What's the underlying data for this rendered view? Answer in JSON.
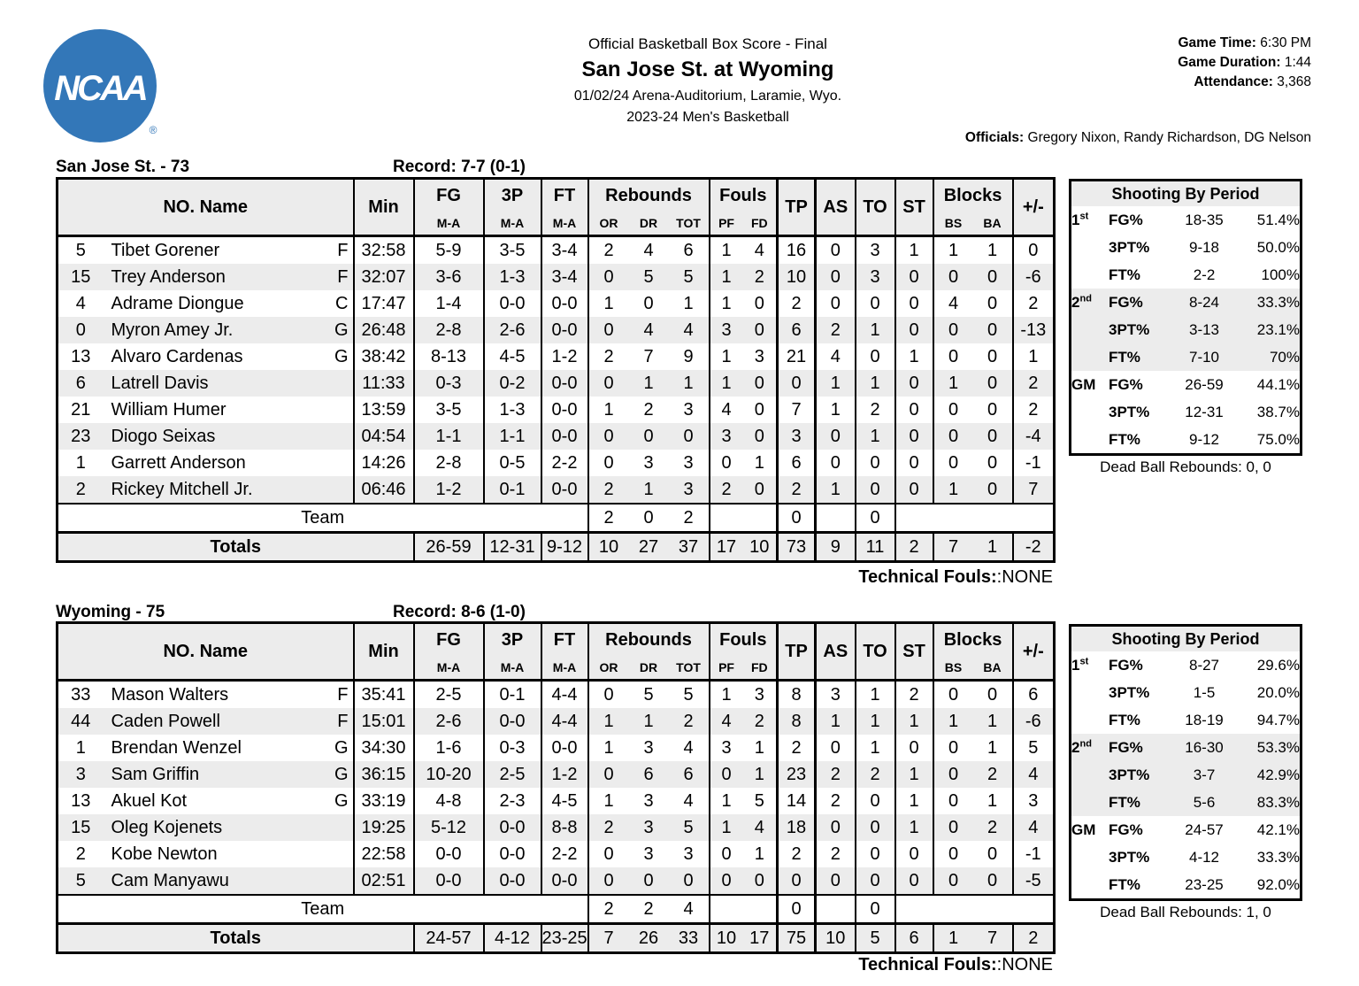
{
  "brand": {
    "ncaa_blue": "#3377b8"
  },
  "logo": {
    "text": "NCAA",
    "registered": "®"
  },
  "header": {
    "line1": "Official Basketball Box Score - Final",
    "line2": "San Jose St. at Wyoming",
    "line3": "01/02/24 Arena-Auditorium, Laramie, Wyo.",
    "line4": "2023-24 Men's Basketball",
    "game_time_label": "Game Time:",
    "game_time_value": "6:30 PM",
    "game_duration_label": "Game Duration:",
    "game_duration_value": "1:44",
    "attendance_label": "Attendance:",
    "attendance_value": "3,368",
    "officials_label": "Officials:",
    "officials_value": "Gregory Nixon, Randy Richardson, DG Nelson"
  },
  "table_header": {
    "no_name": "NO. Name",
    "min": "Min",
    "fg": "FG",
    "p3": "3P",
    "ft": "FT",
    "ma": "M-A",
    "rebounds": "Rebounds",
    "or": "OR",
    "dr": "DR",
    "tot": "TOT",
    "fouls": "Fouls",
    "pf": "PF",
    "fd": "FD",
    "tp": "TP",
    "as": "AS",
    "to": "TO",
    "st": "ST",
    "blocks": "Blocks",
    "bs": "BS",
    "ba": "BA",
    "pm": "+/-"
  },
  "teams": [
    {
      "title": "San Jose St. - 73",
      "record": "Record: 7-7 (0-1)",
      "players": [
        {
          "no": "5",
          "name": "Tibet Gorener",
          "pos": "F",
          "min": "32:58",
          "fg": "5-9",
          "p3": "3-5",
          "ft": "3-4",
          "or": "2",
          "dr": "4",
          "tot": "6",
          "pf": "1",
          "fd": "4",
          "tp": "16",
          "as": "0",
          "to": "3",
          "st": "1",
          "bs": "1",
          "ba": "1",
          "pm": "0"
        },
        {
          "no": "15",
          "name": "Trey Anderson",
          "pos": "F",
          "min": "32:07",
          "fg": "3-6",
          "p3": "1-3",
          "ft": "3-4",
          "or": "0",
          "dr": "5",
          "tot": "5",
          "pf": "1",
          "fd": "2",
          "tp": "10",
          "as": "0",
          "to": "3",
          "st": "0",
          "bs": "0",
          "ba": "0",
          "pm": "-6"
        },
        {
          "no": "4",
          "name": "Adrame Diongue",
          "pos": "C",
          "min": "17:47",
          "fg": "1-4",
          "p3": "0-0",
          "ft": "0-0",
          "or": "1",
          "dr": "0",
          "tot": "1",
          "pf": "1",
          "fd": "0",
          "tp": "2",
          "as": "0",
          "to": "0",
          "st": "0",
          "bs": "4",
          "ba": "0",
          "pm": "2"
        },
        {
          "no": "0",
          "name": "Myron Amey Jr.",
          "pos": "G",
          "min": "26:48",
          "fg": "2-8",
          "p3": "2-6",
          "ft": "0-0",
          "or": "0",
          "dr": "4",
          "tot": "4",
          "pf": "3",
          "fd": "0",
          "tp": "6",
          "as": "2",
          "to": "1",
          "st": "0",
          "bs": "0",
          "ba": "0",
          "pm": "-13"
        },
        {
          "no": "13",
          "name": "Alvaro Cardenas",
          "pos": "G",
          "min": "38:42",
          "fg": "8-13",
          "p3": "4-5",
          "ft": "1-2",
          "or": "2",
          "dr": "7",
          "tot": "9",
          "pf": "1",
          "fd": "3",
          "tp": "21",
          "as": "4",
          "to": "0",
          "st": "1",
          "bs": "0",
          "ba": "0",
          "pm": "1"
        },
        {
          "no": "6",
          "name": "Latrell Davis",
          "pos": "",
          "min": "11:33",
          "fg": "0-3",
          "p3": "0-2",
          "ft": "0-0",
          "or": "0",
          "dr": "1",
          "tot": "1",
          "pf": "1",
          "fd": "0",
          "tp": "0",
          "as": "1",
          "to": "1",
          "st": "0",
          "bs": "1",
          "ba": "0",
          "pm": "2"
        },
        {
          "no": "21",
          "name": "William Humer",
          "pos": "",
          "min": "13:59",
          "fg": "3-5",
          "p3": "1-3",
          "ft": "0-0",
          "or": "1",
          "dr": "2",
          "tot": "3",
          "pf": "4",
          "fd": "0",
          "tp": "7",
          "as": "1",
          "to": "2",
          "st": "0",
          "bs": "0",
          "ba": "0",
          "pm": "2"
        },
        {
          "no": "23",
          "name": "Diogo Seixas",
          "pos": "",
          "min": "04:54",
          "fg": "1-1",
          "p3": "1-1",
          "ft": "0-0",
          "or": "0",
          "dr": "0",
          "tot": "0",
          "pf": "3",
          "fd": "0",
          "tp": "3",
          "as": "0",
          "to": "1",
          "st": "0",
          "bs": "0",
          "ba": "0",
          "pm": "-4"
        },
        {
          "no": "1",
          "name": "Garrett Anderson",
          "pos": "",
          "min": "14:26",
          "fg": "2-8",
          "p3": "0-5",
          "ft": "2-2",
          "or": "0",
          "dr": "3",
          "tot": "3",
          "pf": "0",
          "fd": "1",
          "tp": "6",
          "as": "0",
          "to": "0",
          "st": "0",
          "bs": "0",
          "ba": "0",
          "pm": "-1"
        },
        {
          "no": "2",
          "name": "Rickey Mitchell Jr.",
          "pos": "",
          "min": "06:46",
          "fg": "1-2",
          "p3": "0-1",
          "ft": "0-0",
          "or": "2",
          "dr": "1",
          "tot": "3",
          "pf": "2",
          "fd": "0",
          "tp": "2",
          "as": "1",
          "to": "0",
          "st": "0",
          "bs": "1",
          "ba": "0",
          "pm": "7"
        }
      ],
      "team_row": {
        "label": "Team",
        "or": "2",
        "dr": "0",
        "tot": "2",
        "tp": "0",
        "to": "0"
      },
      "totals": {
        "label": "Totals",
        "fg": "26-59",
        "p3": "12-31",
        "ft": "9-12",
        "or": "10",
        "dr": "27",
        "tot": "37",
        "pf": "17",
        "fd": "10",
        "tp": "73",
        "as": "9",
        "to": "11",
        "st": "2",
        "bs": "7",
        "ba": "1",
        "pm": "-2"
      },
      "tech_label": "Technical Fouls:",
      "tech_value": ":NONE",
      "shooting_title": "Shooting By Period",
      "shooting_periods": [
        {
          "label": "1",
          "sup": "st",
          "shaded": false,
          "rows": [
            [
              "FG%",
              "18-35",
              "51.4%"
            ],
            [
              "3PT%",
              "9-18",
              "50.0%"
            ],
            [
              "FT%",
              "2-2",
              "100%"
            ]
          ]
        },
        {
          "label": "2",
          "sup": "nd",
          "shaded": true,
          "rows": [
            [
              "FG%",
              "8-24",
              "33.3%"
            ],
            [
              "3PT%",
              "3-13",
              "23.1%"
            ],
            [
              "FT%",
              "7-10",
              "70%"
            ]
          ]
        },
        {
          "label": "GM",
          "sup": "",
          "shaded": false,
          "rows": [
            [
              "FG%",
              "26-59",
              "44.1%"
            ],
            [
              "3PT%",
              "12-31",
              "38.7%"
            ],
            [
              "FT%",
              "9-12",
              "75.0%"
            ]
          ]
        }
      ],
      "dead_ball": "Dead Ball Rebounds: 0, 0"
    },
    {
      "title": "Wyoming - 75",
      "record": "Record: 8-6 (1-0)",
      "players": [
        {
          "no": "33",
          "name": "Mason Walters",
          "pos": "F",
          "min": "35:41",
          "fg": "2-5",
          "p3": "0-1",
          "ft": "4-4",
          "or": "0",
          "dr": "5",
          "tot": "5",
          "pf": "1",
          "fd": "3",
          "tp": "8",
          "as": "3",
          "to": "1",
          "st": "2",
          "bs": "0",
          "ba": "0",
          "pm": "6"
        },
        {
          "no": "44",
          "name": "Caden Powell",
          "pos": "F",
          "min": "15:01",
          "fg": "2-6",
          "p3": "0-0",
          "ft": "4-4",
          "or": "1",
          "dr": "1",
          "tot": "2",
          "pf": "4",
          "fd": "2",
          "tp": "8",
          "as": "1",
          "to": "1",
          "st": "1",
          "bs": "1",
          "ba": "1",
          "pm": "-6"
        },
        {
          "no": "1",
          "name": "Brendan Wenzel",
          "pos": "G",
          "min": "34:30",
          "fg": "1-6",
          "p3": "0-3",
          "ft": "0-0",
          "or": "1",
          "dr": "3",
          "tot": "4",
          "pf": "3",
          "fd": "1",
          "tp": "2",
          "as": "0",
          "to": "1",
          "st": "0",
          "bs": "0",
          "ba": "1",
          "pm": "5"
        },
        {
          "no": "3",
          "name": "Sam Griffin",
          "pos": "G",
          "min": "36:15",
          "fg": "10-20",
          "p3": "2-5",
          "ft": "1-2",
          "or": "0",
          "dr": "6",
          "tot": "6",
          "pf": "0",
          "fd": "1",
          "tp": "23",
          "as": "2",
          "to": "2",
          "st": "1",
          "bs": "0",
          "ba": "2",
          "pm": "4"
        },
        {
          "no": "13",
          "name": "Akuel Kot",
          "pos": "G",
          "min": "33:19",
          "fg": "4-8",
          "p3": "2-3",
          "ft": "4-5",
          "or": "1",
          "dr": "3",
          "tot": "4",
          "pf": "1",
          "fd": "5",
          "tp": "14",
          "as": "2",
          "to": "0",
          "st": "1",
          "bs": "0",
          "ba": "1",
          "pm": "3"
        },
        {
          "no": "15",
          "name": "Oleg Kojenets",
          "pos": "",
          "min": "19:25",
          "fg": "5-12",
          "p3": "0-0",
          "ft": "8-8",
          "or": "2",
          "dr": "3",
          "tot": "5",
          "pf": "1",
          "fd": "4",
          "tp": "18",
          "as": "0",
          "to": "0",
          "st": "1",
          "bs": "0",
          "ba": "2",
          "pm": "4"
        },
        {
          "no": "2",
          "name": "Kobe Newton",
          "pos": "",
          "min": "22:58",
          "fg": "0-0",
          "p3": "0-0",
          "ft": "2-2",
          "or": "0",
          "dr": "3",
          "tot": "3",
          "pf": "0",
          "fd": "1",
          "tp": "2",
          "as": "2",
          "to": "0",
          "st": "0",
          "bs": "0",
          "ba": "0",
          "pm": "-1"
        },
        {
          "no": "5",
          "name": "Cam Manyawu",
          "pos": "",
          "min": "02:51",
          "fg": "0-0",
          "p3": "0-0",
          "ft": "0-0",
          "or": "0",
          "dr": "0",
          "tot": "0",
          "pf": "0",
          "fd": "0",
          "tp": "0",
          "as": "0",
          "to": "0",
          "st": "0",
          "bs": "0",
          "ba": "0",
          "pm": "-5"
        }
      ],
      "team_row": {
        "label": "Team",
        "or": "2",
        "dr": "2",
        "tot": "4",
        "tp": "0",
        "to": "0"
      },
      "totals": {
        "label": "Totals",
        "fg": "24-57",
        "p3": "4-12",
        "ft": "23-25",
        "or": "7",
        "dr": "26",
        "tot": "33",
        "pf": "10",
        "fd": "17",
        "tp": "75",
        "as": "10",
        "to": "5",
        "st": "6",
        "bs": "1",
        "ba": "7",
        "pm": "2"
      },
      "tech_label": "Technical Fouls:",
      "tech_value": ":NONE",
      "shooting_title": "Shooting By Period",
      "shooting_periods": [
        {
          "label": "1",
          "sup": "st",
          "shaded": false,
          "rows": [
            [
              "FG%",
              "8-27",
              "29.6%"
            ],
            [
              "3PT%",
              "1-5",
              "20.0%"
            ],
            [
              "FT%",
              "18-19",
              "94.7%"
            ]
          ]
        },
        {
          "label": "2",
          "sup": "nd",
          "shaded": true,
          "rows": [
            [
              "FG%",
              "16-30",
              "53.3%"
            ],
            [
              "3PT%",
              "3-7",
              "42.9%"
            ],
            [
              "FT%",
              "5-6",
              "83.3%"
            ]
          ]
        },
        {
          "label": "GM",
          "sup": "",
          "shaded": false,
          "rows": [
            [
              "FG%",
              "24-57",
              "42.1%"
            ],
            [
              "3PT%",
              "4-12",
              "33.3%"
            ],
            [
              "FT%",
              "23-25",
              "92.0%"
            ]
          ]
        }
      ],
      "dead_ball": "Dead Ball Rebounds: 1, 0"
    }
  ]
}
